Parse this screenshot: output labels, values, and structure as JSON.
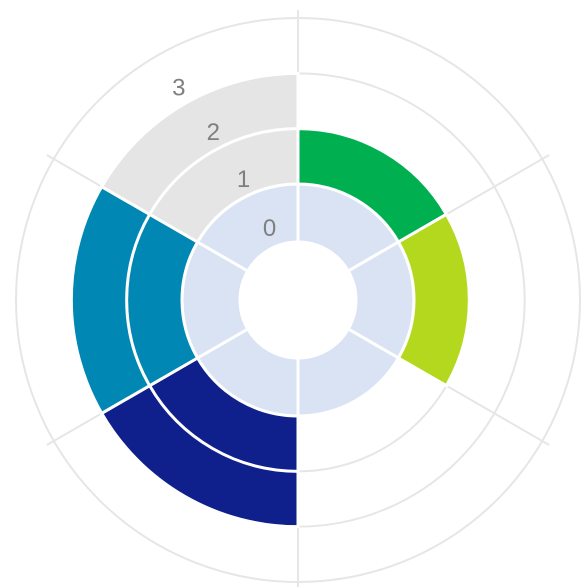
{
  "chart_data": {
    "type": "radial",
    "values": [
      1,
      1,
      0,
      2,
      2,
      2
    ],
    "colors": [
      "#00b050",
      "#b4d81e",
      null,
      "#0f1f8c",
      "#0087b3",
      "#e5e5e5"
    ],
    "base_color": "#dae3f3",
    "rlim": [
      0,
      3
    ],
    "rticks": [
      0,
      1,
      2,
      3
    ],
    "grid": true
  }
}
